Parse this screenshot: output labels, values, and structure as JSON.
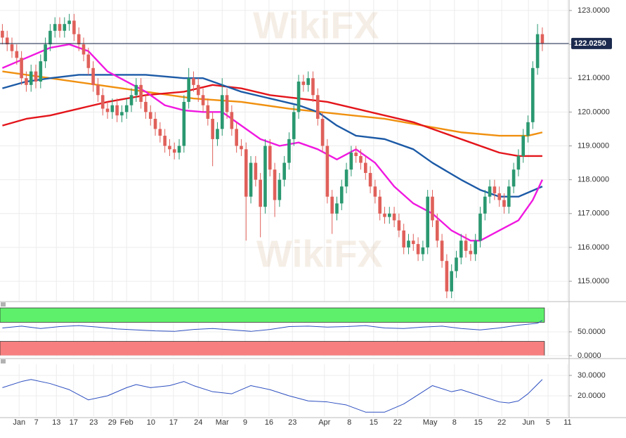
{
  "chart_data": {
    "type": "candlestick",
    "watermark": "WikiFX",
    "up_color": "#2a9870",
    "down_color": "#e0605a",
    "grid": true,
    "xlim": [
      -0.5,
      118.6
    ],
    "xticks": [
      {
        "value": 3.5,
        "label": "Jan"
      },
      {
        "value": 7.1,
        "label": "7"
      },
      {
        "value": 11.3,
        "label": "13"
      },
      {
        "value": 14.9,
        "label": "17"
      },
      {
        "value": 19.1,
        "label": "23"
      },
      {
        "value": 23.0,
        "label": "29"
      },
      {
        "value": 26.0,
        "label": "Feb"
      },
      {
        "value": 31.1,
        "label": "10"
      },
      {
        "value": 35.8,
        "label": "17"
      },
      {
        "value": 41.0,
        "label": "24"
      },
      {
        "value": 46.0,
        "label": "Mar"
      },
      {
        "value": 50.8,
        "label": "9"
      },
      {
        "value": 55.8,
        "label": "16"
      },
      {
        "value": 60.7,
        "label": "23"
      },
      {
        "value": 67.4,
        "label": "Apr"
      },
      {
        "value": 72.6,
        "label": "8"
      },
      {
        "value": 77.7,
        "label": "15"
      },
      {
        "value": 82.7,
        "label": "22"
      },
      {
        "value": 89.5,
        "label": "May"
      },
      {
        "value": 94.6,
        "label": "8"
      },
      {
        "value": 99.6,
        "label": "15"
      },
      {
        "value": 104.5,
        "label": "22"
      },
      {
        "value": 110.1,
        "label": "Jun"
      },
      {
        "value": 114.2,
        "label": "5"
      },
      {
        "value": 118.3,
        "label": "11"
      }
    ],
    "ylim": [
      114.42,
      123.31
    ],
    "yticks": [
      {
        "value": 115,
        "label": "115.0000"
      },
      {
        "value": 116,
        "label": "116.0000"
      },
      {
        "value": 117,
        "label": "117.0000"
      },
      {
        "value": 118,
        "label": "118.0000"
      },
      {
        "value": 119,
        "label": "119.0000"
      },
      {
        "value": 120,
        "label": "120.0000"
      },
      {
        "value": 121,
        "label": "121.0000"
      },
      {
        "value": 122,
        "label": "122.0000"
      },
      {
        "value": 123,
        "label": "123.0000"
      }
    ],
    "last_price": 122.025,
    "last_price_label": "122.0250",
    "last_price_color": "#1b2a4e",
    "open": [
      122.4,
      122.2,
      122.0,
      121.8,
      121.6,
      121.0,
      120.8,
      121.2,
      120.9,
      121.5,
      122.0,
      122.4,
      122.6,
      122.4,
      122.6,
      122.7,
      122.3,
      122.0,
      121.7,
      121.3,
      120.8,
      120.5,
      120.1,
      120.0,
      120.2,
      119.9,
      120.0,
      120.2,
      120.5,
      120.8,
      120.3,
      120.0,
      119.8,
      119.5,
      119.3,
      119.0,
      118.9,
      118.8,
      119.0,
      120.3,
      121.0,
      120.8,
      120.5,
      120.2,
      119.8,
      119.2,
      119.5,
      120.5,
      120.0,
      119.5,
      119.0,
      118.9,
      117.5,
      118.5,
      118.0,
      117.2,
      119.0,
      118.3,
      117.4,
      118.0,
      118.5,
      119.2,
      120.0,
      120.9,
      120.8,
      121.0,
      120.5,
      119.8,
      119.0,
      117.5,
      117.0,
      117.3,
      117.8,
      118.3,
      118.8,
      118.7,
      118.5,
      118.2,
      117.8,
      117.5,
      117.0,
      116.9,
      117.0,
      116.8,
      116.5,
      116.0,
      116.2,
      116.1,
      115.8,
      116.0,
      117.5,
      116.8,
      116.2,
      115.6,
      114.7,
      115.3,
      115.7,
      116.2,
      115.9,
      115.8,
      116.2,
      117.0,
      117.5,
      117.8,
      117.6,
      117.4,
      117.2,
      117.8,
      118.3,
      118.7,
      119.3,
      119.7,
      121.3,
      122.3
    ],
    "high": [
      122.6,
      122.4,
      122.2,
      122.0,
      121.8,
      121.2,
      121.4,
      121.4,
      121.7,
      122.2,
      122.6,
      122.8,
      122.8,
      122.8,
      122.9,
      122.9,
      122.5,
      122.2,
      121.9,
      121.5,
      121.0,
      120.7,
      120.3,
      120.4,
      120.4,
      120.2,
      120.4,
      120.7,
      121.0,
      121.0,
      120.5,
      120.2,
      120.0,
      119.7,
      119.5,
      119.2,
      119.1,
      119.2,
      120.5,
      121.3,
      121.2,
      121.0,
      120.7,
      120.4,
      120.0,
      119.7,
      121.0,
      120.7,
      120.2,
      119.7,
      119.2,
      119.1,
      118.7,
      118.7,
      118.2,
      119.2,
      119.2,
      118.5,
      118.2,
      118.7,
      119.4,
      120.2,
      121.1,
      121.1,
      121.2,
      121.2,
      120.7,
      120.0,
      119.2,
      117.7,
      117.5,
      118.0,
      118.5,
      119.0,
      119.0,
      118.9,
      118.7,
      118.4,
      118.0,
      117.7,
      117.2,
      117.2,
      117.2,
      117.0,
      116.7,
      116.4,
      116.4,
      116.3,
      116.2,
      117.7,
      117.7,
      117.0,
      116.4,
      115.8,
      115.5,
      115.9,
      116.4,
      116.4,
      116.1,
      116.4,
      117.2,
      117.7,
      118.0,
      118.0,
      117.8,
      117.6,
      118.0,
      118.5,
      118.9,
      119.5,
      119.9,
      121.5,
      122.6,
      122.5
    ],
    "low": [
      122.0,
      121.8,
      121.6,
      121.4,
      120.8,
      120.6,
      120.6,
      120.7,
      120.7,
      121.3,
      121.8,
      122.2,
      122.2,
      122.2,
      122.4,
      122.1,
      121.8,
      121.5,
      121.1,
      120.6,
      120.3,
      119.9,
      119.8,
      119.8,
      119.7,
      119.7,
      119.8,
      120.0,
      120.3,
      120.1,
      119.8,
      119.6,
      119.3,
      119.1,
      118.8,
      118.7,
      118.6,
      118.6,
      118.8,
      120.1,
      120.6,
      120.3,
      120.0,
      119.6,
      118.4,
      119.0,
      119.3,
      119.8,
      119.3,
      118.8,
      118.7,
      116.2,
      117.3,
      117.8,
      116.3,
      117.0,
      118.1,
      116.9,
      117.2,
      117.8,
      118.3,
      119.0,
      119.8,
      120.6,
      120.6,
      120.3,
      119.6,
      118.8,
      117.3,
      116.4,
      116.8,
      117.1,
      117.6,
      118.1,
      118.5,
      118.3,
      118.0,
      117.6,
      117.3,
      116.8,
      116.7,
      116.7,
      116.6,
      116.3,
      115.8,
      115.8,
      115.9,
      115.6,
      115.6,
      115.8,
      116.6,
      116.0,
      115.4,
      114.5,
      114.5,
      115.1,
      115.5,
      115.7,
      115.6,
      115.6,
      116.0,
      116.8,
      117.3,
      117.4,
      117.2,
      117.0,
      117.0,
      117.6,
      118.1,
      118.5,
      119.1,
      119.5,
      121.1,
      121.8
    ],
    "close": [
      122.2,
      122.0,
      121.8,
      121.6,
      121.0,
      120.8,
      121.2,
      120.9,
      121.5,
      122.0,
      122.4,
      122.6,
      122.4,
      122.6,
      122.7,
      122.3,
      122.0,
      121.7,
      121.3,
      120.8,
      120.5,
      120.1,
      120.0,
      120.2,
      119.9,
      120.0,
      120.2,
      120.5,
      120.8,
      120.3,
      120.0,
      119.8,
      119.5,
      119.3,
      119.0,
      118.9,
      118.8,
      119.0,
      120.3,
      121.0,
      120.8,
      120.5,
      120.2,
      119.8,
      119.2,
      119.5,
      120.5,
      120.0,
      119.5,
      119.0,
      118.9,
      117.5,
      118.5,
      118.0,
      117.2,
      119.0,
      118.3,
      117.4,
      118.0,
      118.5,
      119.2,
      120.0,
      120.9,
      120.8,
      121.0,
      120.5,
      119.8,
      119.0,
      117.5,
      117.0,
      117.3,
      117.8,
      118.3,
      118.8,
      118.7,
      118.5,
      118.2,
      117.8,
      117.5,
      117.0,
      116.9,
      117.0,
      116.8,
      116.5,
      116.0,
      116.2,
      116.1,
      115.8,
      116.0,
      117.5,
      116.8,
      116.2,
      115.6,
      114.7,
      115.3,
      115.7,
      116.2,
      115.9,
      115.8,
      116.2,
      117.0,
      117.5,
      117.8,
      117.6,
      117.4,
      117.2,
      117.8,
      118.3,
      118.7,
      119.3,
      119.7,
      121.3,
      122.3,
      122.025
    ],
    "overlays": [
      {
        "color": "#f0900f",
        "x": [
          0,
          10,
          20,
          30,
          40,
          50,
          60,
          70,
          80,
          90,
          96,
          104,
          110,
          113
        ],
        "values": [
          121.2,
          121.0,
          120.8,
          120.6,
          120.4,
          120.3,
          120.1,
          119.95,
          119.8,
          119.55,
          119.4,
          119.3,
          119.3,
          119.4
        ]
      },
      {
        "color": "#e3151b",
        "x": [
          0,
          5,
          10,
          16,
          22,
          30,
          38,
          44,
          50,
          56,
          62,
          68,
          74,
          80,
          86,
          92,
          98,
          104,
          108,
          113
        ],
        "values": [
          119.6,
          119.8,
          119.9,
          120.1,
          120.3,
          120.5,
          120.6,
          120.8,
          120.7,
          120.5,
          120.4,
          120.3,
          120.1,
          119.9,
          119.7,
          119.4,
          119.1,
          118.8,
          118.7,
          118.7
        ]
      },
      {
        "color": "#1c5aa6",
        "x": [
          0,
          5,
          10,
          16,
          22,
          30,
          38,
          42,
          46,
          50,
          56,
          62,
          66,
          70,
          74,
          80,
          86,
          90,
          96,
          100,
          104,
          108,
          113
        ],
        "values": [
          120.7,
          120.9,
          121.0,
          121.1,
          121.1,
          121.1,
          121.0,
          121.0,
          120.8,
          120.6,
          120.4,
          120.2,
          120.0,
          119.6,
          119.3,
          119.2,
          118.9,
          118.5,
          118.0,
          117.7,
          117.5,
          117.5,
          117.8
        ]
      },
      {
        "color": "#f018e0",
        "x": [
          0,
          5,
          10,
          14,
          18,
          22,
          26,
          30,
          34,
          38,
          42,
          46,
          50,
          54,
          58,
          62,
          66,
          70,
          74,
          78,
          82,
          86,
          90,
          94,
          98,
          100,
          104,
          108,
          111,
          113
        ],
        "values": [
          121.3,
          121.6,
          121.9,
          122.0,
          121.8,
          121.2,
          120.9,
          120.6,
          120.2,
          120.05,
          120.0,
          120.0,
          119.6,
          119.2,
          119.0,
          119.1,
          118.9,
          118.6,
          118.9,
          118.5,
          117.8,
          117.3,
          117.0,
          116.5,
          116.2,
          116.2,
          116.5,
          116.8,
          117.4,
          118.0
        ]
      }
    ],
    "indicators": [
      {
        "type": "line",
        "color": "#2d4fc0",
        "ylim": [
          -1.5,
          100
        ],
        "yticks": [
          {
            "value": 50,
            "label": "50.0000"
          },
          {
            "value": 0,
            "label": "0.0000"
          }
        ],
        "zones": [
          {
            "from": 70,
            "to": 100,
            "color": "#5ef06a"
          },
          {
            "from": 0,
            "to": 30,
            "color": "#f77f7f"
          }
        ],
        "x": [
          0,
          4,
          8,
          12,
          16,
          20,
          24,
          28,
          32,
          36,
          40,
          44,
          48,
          52,
          56,
          60,
          64,
          68,
          72,
          76,
          80,
          84,
          88,
          92,
          96,
          100,
          104,
          108,
          112,
          113
        ],
        "values": [
          58,
          62,
          57,
          61,
          63,
          60,
          56,
          54,
          52,
          51,
          55,
          57,
          54,
          51,
          55,
          61,
          62,
          60,
          61,
          63,
          58,
          57,
          60,
          62,
          57,
          54,
          58,
          64,
          68,
          74
        ]
      },
      {
        "type": "line",
        "color": "#2d4fc0",
        "ylim": [
          10,
          35.5
        ],
        "yticks": [
          {
            "value": 30,
            "label": "30.0000"
          },
          {
            "value": 20,
            "label": "20.0000"
          }
        ],
        "x": [
          0,
          4,
          6,
          10,
          14,
          18,
          22,
          26,
          28,
          31,
          35,
          38,
          40,
          44,
          48,
          52,
          56,
          60,
          64,
          68,
          72,
          76,
          80,
          84,
          88,
          90,
          94,
          96,
          100,
          104,
          106,
          108,
          110,
          113
        ],
        "values": [
          24,
          27,
          28,
          26,
          23,
          18,
          20,
          24,
          25.5,
          24,
          25,
          27,
          25,
          22,
          21,
          25,
          23,
          20,
          17.5,
          17,
          15.5,
          12,
          12,
          16,
          22,
          25,
          22,
          23,
          20,
          17,
          16.5,
          17.5,
          21,
          28
        ]
      }
    ]
  }
}
